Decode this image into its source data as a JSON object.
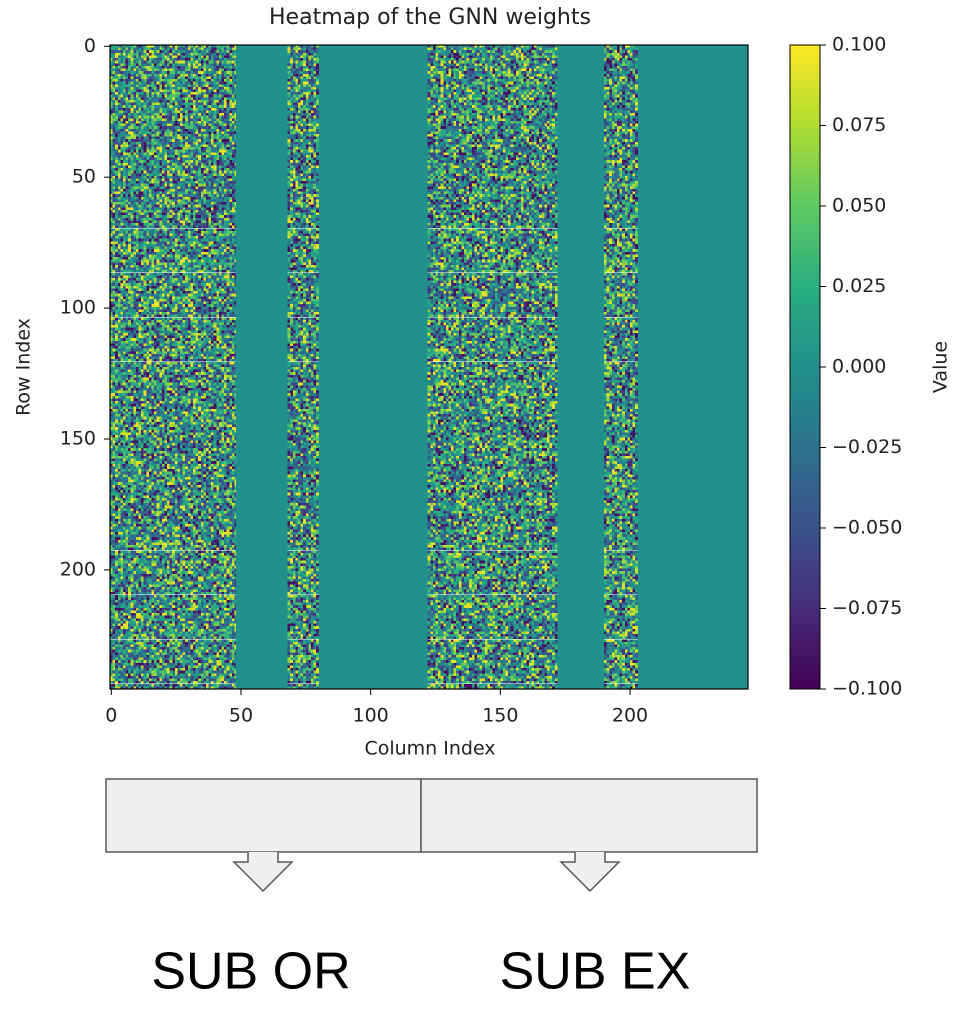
{
  "chart_data": {
    "type": "heatmap",
    "title": "Heatmap of the GNN weights",
    "xlabel": "Column Index",
    "ylabel": "Row Index",
    "xlim": [
      -0.5,
      245.5
    ],
    "ylim": [
      245.5,
      -0.5
    ],
    "xticks": [
      0,
      50,
      100,
      150,
      200
    ],
    "yticks": [
      0,
      50,
      100,
      150,
      200
    ],
    "column_edges": [
      -0.5,
      48,
      68,
      80,
      122,
      172,
      190,
      203,
      245.5
    ],
    "values": [
      null,
      0,
      null,
      0,
      null,
      0,
      null,
      0
    ],
    "colorbar": {
      "label": "Value",
      "colormap": "viridis",
      "clim": [
        -0.1,
        0.1
      ],
      "ticks": [
        {
          "value": 0.1,
          "label": "0.100"
        },
        {
          "value": 0.075,
          "label": "0.075"
        },
        {
          "value": 0.05,
          "label": "0.050"
        },
        {
          "value": 0.025,
          "label": "0.025"
        },
        {
          "value": 0,
          "label": "0.000"
        },
        {
          "value": -0.025,
          "label": "−0.025"
        },
        {
          "value": -0.05,
          "label": "−0.050"
        },
        {
          "value": -0.075,
          "label": "−0.075"
        },
        {
          "value": -0.1,
          "label": "−0.100"
        }
      ]
    }
  },
  "annotations": [
    "SUB OR",
    "SUB EX"
  ]
}
